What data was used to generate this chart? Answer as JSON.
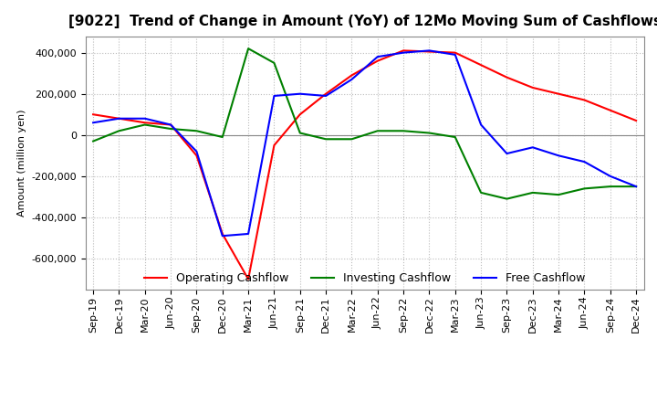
{
  "title": "[9022]  Trend of Change in Amount (YoY) of 12Mo Moving Sum of Cashflows",
  "ylabel": "Amount (million yen)",
  "x_labels": [
    "Sep-19",
    "Dec-19",
    "Mar-20",
    "Jun-20",
    "Sep-20",
    "Dec-20",
    "Mar-21",
    "Jun-21",
    "Sep-21",
    "Dec-21",
    "Mar-22",
    "Jun-22",
    "Sep-22",
    "Dec-22",
    "Mar-23",
    "Jun-23",
    "Sep-23",
    "Dec-23",
    "Mar-24",
    "Jun-24",
    "Sep-24",
    "Dec-24"
  ],
  "operating": [
    100000,
    80000,
    60000,
    50000,
    -100000,
    -480000,
    -700000,
    -50000,
    100000,
    200000,
    290000,
    360000,
    410000,
    405000,
    400000,
    340000,
    280000,
    230000,
    200000,
    170000,
    120000,
    70000
  ],
  "investing": [
    -30000,
    20000,
    50000,
    30000,
    20000,
    -10000,
    420000,
    350000,
    10000,
    -20000,
    -20000,
    20000,
    20000,
    10000,
    -10000,
    -280000,
    -310000,
    -280000,
    -290000,
    -260000,
    -250000,
    -250000
  ],
  "free": [
    60000,
    80000,
    80000,
    50000,
    -80000,
    -490000,
    -480000,
    190000,
    200000,
    190000,
    270000,
    380000,
    400000,
    410000,
    390000,
    50000,
    -90000,
    -60000,
    -100000,
    -130000,
    -200000,
    -250000
  ],
  "operating_color": "#ff0000",
  "investing_color": "#008000",
  "free_color": "#0000ff",
  "ylim": [
    -750000,
    480000
  ],
  "yticks": [
    -600000,
    -400000,
    -200000,
    0,
    200000,
    400000
  ],
  "background_color": "#ffffff",
  "grid_color": "#bbbbbb",
  "title_fontsize": 11,
  "axis_fontsize": 8,
  "legend_fontsize": 9
}
